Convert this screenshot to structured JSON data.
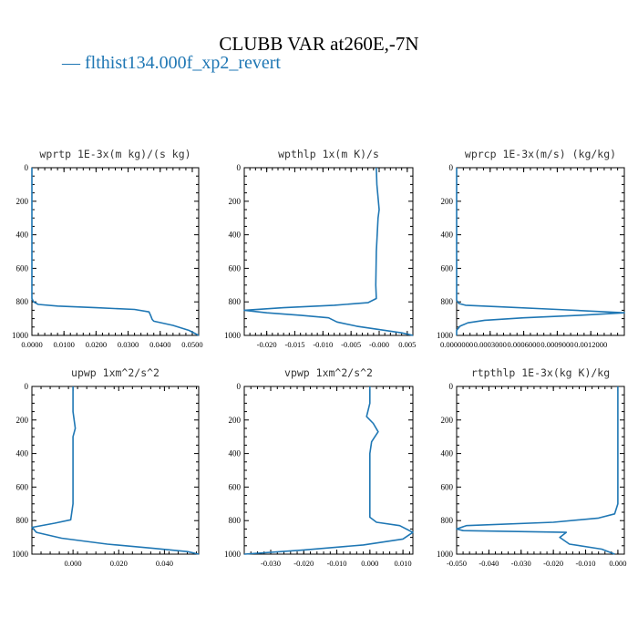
{
  "title": "CLUBB VAR at260E,-7N",
  "legend": {
    "marker": "—",
    "label": "flthist134.000f_xp2_revert",
    "color": "#1f77b4"
  },
  "chart_data": [
    {
      "type": "line",
      "title": "wprtp 1E-3x(m kg)/(s kg)",
      "ylim": [
        1000,
        0
      ],
      "yticks": [
        "0",
        "200",
        "400",
        "600",
        "800",
        "1000"
      ],
      "xlim": [
        0.0,
        0.052
      ],
      "xticks": [
        0.0,
        0.01,
        0.02,
        0.03,
        0.04,
        0.05
      ],
      "xticklabels": [
        "0.0000",
        "0.0100",
        "0.0200",
        "0.0300",
        "0.0400",
        "0.0500"
      ],
      "series": [
        {
          "color": "#1f77b4",
          "x": [
            0.0,
            0.0,
            0.0,
            0.0005,
            0.002,
            0.008,
            0.02,
            0.032,
            0.0365,
            0.037,
            0.0375,
            0.038,
            0.044,
            0.049,
            0.052
          ],
          "y": [
            0,
            400,
            780,
            800,
            815,
            825,
            835,
            845,
            860,
            880,
            905,
            915,
            940,
            970,
            1000
          ]
        }
      ]
    },
    {
      "type": "line",
      "title": "wpthlp 1x(m K)/s",
      "ylim": [
        1000,
        0
      ],
      "yticks": [
        "0",
        "200",
        "400",
        "600",
        "800",
        "1000"
      ],
      "xlim": [
        -0.024,
        0.006
      ],
      "xticks": [
        -0.02,
        -0.015,
        -0.01,
        -0.005,
        0.0,
        0.005
      ],
      "xticklabels": [
        "-0.020",
        "-0.015",
        "-0.010",
        "-0.005",
        "-0.000",
        "0.005"
      ],
      "series": [
        {
          "color": "#1f77b4",
          "x": [
            -0.0005,
            -0.0004,
            0.0,
            -0.0002,
            -0.0005,
            -0.0006,
            -0.0005,
            -0.002,
            -0.008,
            -0.017,
            -0.024,
            -0.02,
            -0.014,
            -0.009,
            -0.0075,
            -0.004,
            0.0,
            0.004,
            0.006
          ],
          "y": [
            0,
            100,
            250,
            300,
            500,
            700,
            780,
            805,
            820,
            835,
            850,
            865,
            880,
            895,
            920,
            945,
            965,
            985,
            1000
          ]
        }
      ]
    },
    {
      "type": "line",
      "title": "wprcp 1E-3x(m/s) (kg/kg)",
      "ylim": [
        1000,
        0
      ],
      "yticks": [
        "0",
        "200",
        "400",
        "600",
        "800",
        "1000"
      ],
      "xlim": [
        0.0,
        0.0015
      ],
      "xticks": [
        0.0,
        0.0003,
        0.0006,
        0.0009,
        0.0012
      ],
      "xticklabels": [
        "0.0000000",
        "0.0003000",
        "0.0006000",
        "0.0009000",
        "0.0012000"
      ],
      "series": [
        {
          "color": "#1f77b4",
          "x": [
            0.0,
            0.0,
            2e-05,
            8e-05,
            0.0004,
            0.0009,
            0.0015,
            0.0011,
            0.0006,
            0.00025,
            0.0001,
            3e-05,
            0.0,
            0.0
          ],
          "y": [
            0,
            790,
            810,
            820,
            830,
            845,
            865,
            880,
            895,
            910,
            925,
            945,
            970,
            1000
          ]
        }
      ]
    },
    {
      "type": "line",
      "title": "upwp 1xm^2/s^2",
      "ylim": [
        1000,
        0
      ],
      "yticks": [
        "0",
        "200",
        "400",
        "600",
        "800",
        "1000"
      ],
      "xlim": [
        -0.018,
        0.055
      ],
      "xticks": [
        0.0,
        0.02,
        0.04
      ],
      "xticklabels": [
        "0.000",
        "0.020",
        "0.040"
      ],
      "series": [
        {
          "color": "#1f77b4",
          "x": [
            0.0,
            0.0,
            0.001,
            0.0,
            0.0,
            -0.001,
            -0.008,
            -0.018,
            -0.016,
            -0.005,
            0.015,
            0.035,
            0.05,
            0.055
          ],
          "y": [
            0,
            150,
            250,
            300,
            700,
            795,
            815,
            840,
            870,
            905,
            940,
            965,
            985,
            1000
          ]
        }
      ]
    },
    {
      "type": "line",
      "title": "vpwp 1xm^2/s^2",
      "ylim": [
        1000,
        0
      ],
      "yticks": [
        "0",
        "200",
        "400",
        "600",
        "800",
        "1000"
      ],
      "xlim": [
        -0.038,
        0.013
      ],
      "xticks": [
        -0.03,
        -0.02,
        -0.01,
        0.0,
        0.01
      ],
      "xticklabels": [
        "-0.030",
        "-0.020",
        "-0.010",
        "0.000",
        "0.010"
      ],
      "series": [
        {
          "color": "#1f77b4",
          "x": [
            0.0,
            0.0,
            -0.001,
            0.001,
            0.0025,
            0.0005,
            0.0,
            0.0,
            0.002,
            0.009,
            0.013,
            0.01,
            -0.002,
            -0.02,
            -0.038
          ],
          "y": [
            0,
            100,
            180,
            220,
            270,
            330,
            400,
            780,
            810,
            830,
            870,
            910,
            945,
            975,
            1000
          ]
        }
      ]
    },
    {
      "type": "line",
      "title": "rtpthlp 1E-3x(kg K)/kg",
      "ylim": [
        1000,
        0
      ],
      "yticks": [
        "0",
        "200",
        "400",
        "600",
        "800",
        "1000"
      ],
      "xlim": [
        -0.05,
        0.002
      ],
      "xticks": [
        -0.05,
        -0.04,
        -0.03,
        -0.02,
        -0.01,
        0.0
      ],
      "xticklabels": [
        "-0.050",
        "-0.040",
        "-0.030",
        "-0.020",
        "-0.010",
        "0.000"
      ],
      "series": [
        {
          "color": "#1f77b4",
          "x": [
            0.0,
            0.0,
            -0.001,
            -0.006,
            -0.02,
            -0.047,
            -0.05,
            -0.048,
            -0.016,
            -0.018,
            -0.015,
            -0.005,
            -0.001
          ],
          "y": [
            0,
            700,
            760,
            785,
            810,
            830,
            850,
            860,
            870,
            900,
            940,
            970,
            1000
          ]
        }
      ]
    }
  ]
}
